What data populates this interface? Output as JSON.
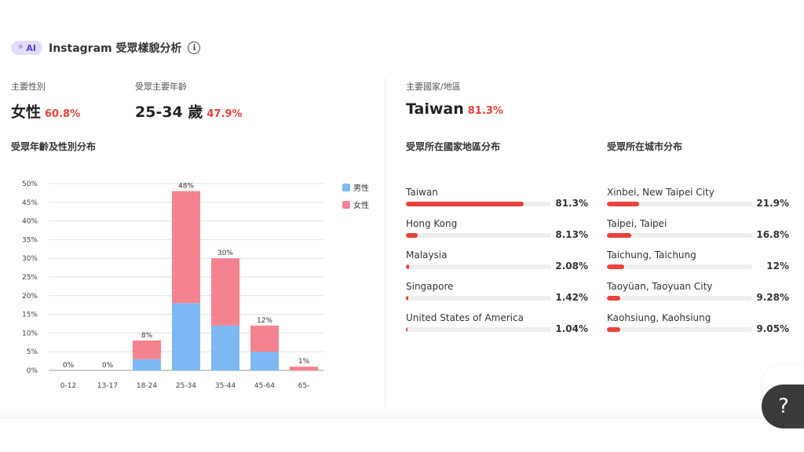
{
  "header": {
    "ai_badge": "AI",
    "title": "Instagram 受眾樣貌分析",
    "info_icon": "i"
  },
  "summary": {
    "gender": {
      "label": "主要性別",
      "value": "女性",
      "pct": "60.8%"
    },
    "age": {
      "label": "受眾主要年齡",
      "value": "25-34 歲",
      "pct": "47.9%"
    },
    "country": {
      "label": "主要國家/地區",
      "value": "Taiwan",
      "pct": "81.3%"
    }
  },
  "sections": {
    "age_gender": "受眾年齡及性別分布",
    "country": "受眾所在國家地區分布",
    "city": "受眾所在城市分布"
  },
  "chart_data": {
    "type": "bar",
    "stacked": true,
    "categories": [
      "0-12",
      "13-17",
      "18-24",
      "25-34",
      "35-44",
      "45-64",
      "65-"
    ],
    "series": [
      {
        "name": "男性",
        "color": "#7db8f5",
        "values": [
          0,
          0,
          3,
          18,
          12,
          5,
          0
        ]
      },
      {
        "name": "女性",
        "color": "#f5828f",
        "values": [
          0,
          0,
          5,
          30,
          18,
          7,
          1
        ]
      }
    ],
    "total_labels": [
      "0%",
      "0%",
      "8%",
      "48%",
      "30%",
      "12%",
      "1%"
    ],
    "ylim": [
      0,
      50
    ],
    "yticks": [
      "0%",
      "5%",
      "10%",
      "15%",
      "20%",
      "25%",
      "30%",
      "35%",
      "40%",
      "45%",
      "50%"
    ],
    "grid": true,
    "legend_position": "right"
  },
  "countries": [
    {
      "name": "Taiwan",
      "pct": "81.3%",
      "value": 81.3
    },
    {
      "name": "Hong Kong",
      "pct": "8.13%",
      "value": 8.13
    },
    {
      "name": "Malaysia",
      "pct": "2.08%",
      "value": 2.08
    },
    {
      "name": "Singapore",
      "pct": "1.42%",
      "value": 1.42
    },
    {
      "name": "United States of America",
      "pct": "1.04%",
      "value": 1.04
    }
  ],
  "cities": [
    {
      "name": "Xinbei, New Taipei City",
      "pct": "21.9%",
      "value": 21.9
    },
    {
      "name": "Taipei, Taipei",
      "pct": "16.8%",
      "value": 16.8
    },
    {
      "name": "Taichung, Taichung",
      "pct": "12%",
      "value": 12
    },
    {
      "name": "Taoyüan, Taoyuan City",
      "pct": "9.28%",
      "value": 9.28
    },
    {
      "name": "Kaohsiung, Kaohsiung",
      "pct": "9.05%",
      "value": 9.05
    }
  ],
  "help": {
    "label": "?"
  },
  "colors": {
    "accent": "#e8423b",
    "male": "#7db8f5",
    "female": "#f5828f",
    "ai": "#5b3fd6"
  }
}
